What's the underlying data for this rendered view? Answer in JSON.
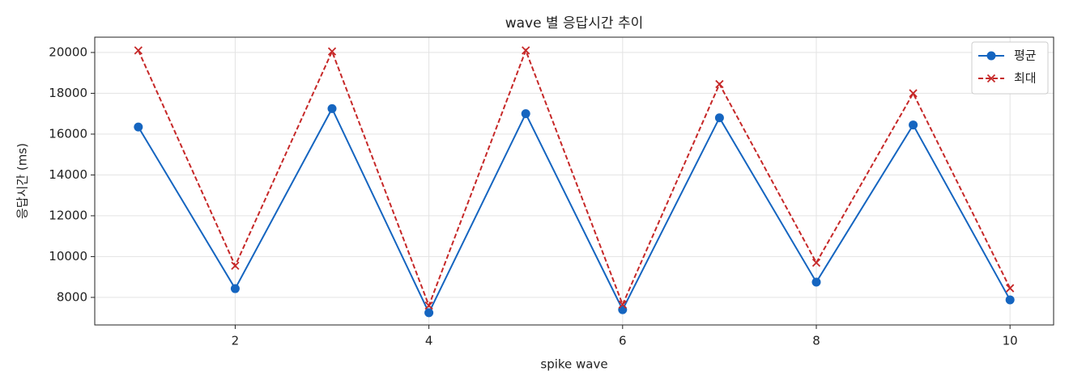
{
  "chart_data": {
    "type": "line",
    "title": "wave 별 응답시간 추이",
    "x_label": "spike wave",
    "y_label": "응답시간 (ms)",
    "x": [
      1,
      2,
      3,
      4,
      5,
      6,
      7,
      8,
      9,
      10
    ],
    "series": [
      {
        "name": "평균",
        "color": "#1565c0",
        "marker": "circle",
        "line_style": "solid",
        "values": [
          16350,
          8430,
          17250,
          7250,
          17000,
          7400,
          16800,
          8750,
          16450,
          7880
        ]
      },
      {
        "name": "최대",
        "color": "#c62828",
        "marker": "x",
        "line_style": "dashed",
        "values": [
          20100,
          9550,
          20050,
          7600,
          20100,
          7650,
          18450,
          9700,
          18000,
          8450
        ]
      }
    ],
    "xlim": [
      0.55,
      10.45
    ],
    "xticks": [
      2,
      4,
      6,
      8,
      10
    ],
    "ylim": [
      6650,
      20750
    ],
    "yticks": [
      8000,
      10000,
      12000,
      14000,
      16000,
      18000,
      20000
    ],
    "grid": true,
    "legend": "upper right"
  }
}
